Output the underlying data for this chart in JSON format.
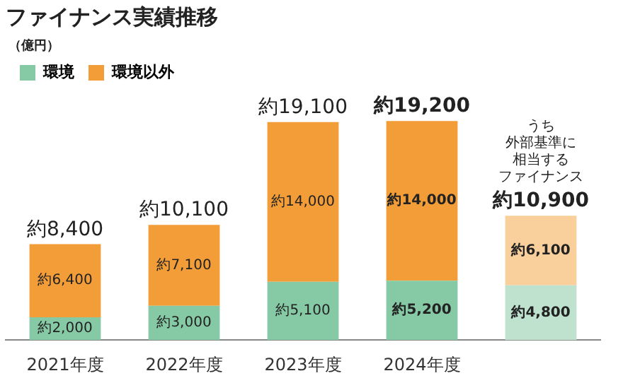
{
  "chart_data": {
    "type": "bar",
    "title": "ファイナンス実績推移",
    "stacked": true,
    "legend": "top left",
    "grid": false,
    "categories": [
      "2021年度",
      "2022年度",
      "2023年度",
      "2024年度",
      null
    ],
    "series": [
      {
        "name": "環境",
        "color": "#86c9a5",
        "colors": [
          "#86c9a5",
          "#86c9a5",
          "#86c9a5",
          "#86c9a5",
          "#bfe2cf"
        ],
        "values": [
          2000,
          3000,
          5100,
          5200,
          4800
        ],
        "value_labels": [
          "約2,000",
          "約3,000",
          "約5,100",
          "約5,200",
          "約4,800"
        ]
      },
      {
        "name": "環境以外",
        "color": "#f29d38",
        "colors": [
          "#f29d38",
          "#f29d38",
          "#f29d38",
          "#f29d38",
          "#f9d09c"
        ],
        "values": [
          6400,
          7100,
          14000,
          14000,
          6100
        ],
        "value_labels": [
          "約6,400",
          "約7,100",
          "約14,000",
          "約14,000",
          "約6,100"
        ]
      }
    ],
    "totals": [
      "約8,400",
      "約10,100",
      "約19,100",
      "約19,200",
      "約10,900"
    ],
    "annotations": [
      "（億円）",
      "うち外部基準に相当するファイナンス"
    ]
  }
}
